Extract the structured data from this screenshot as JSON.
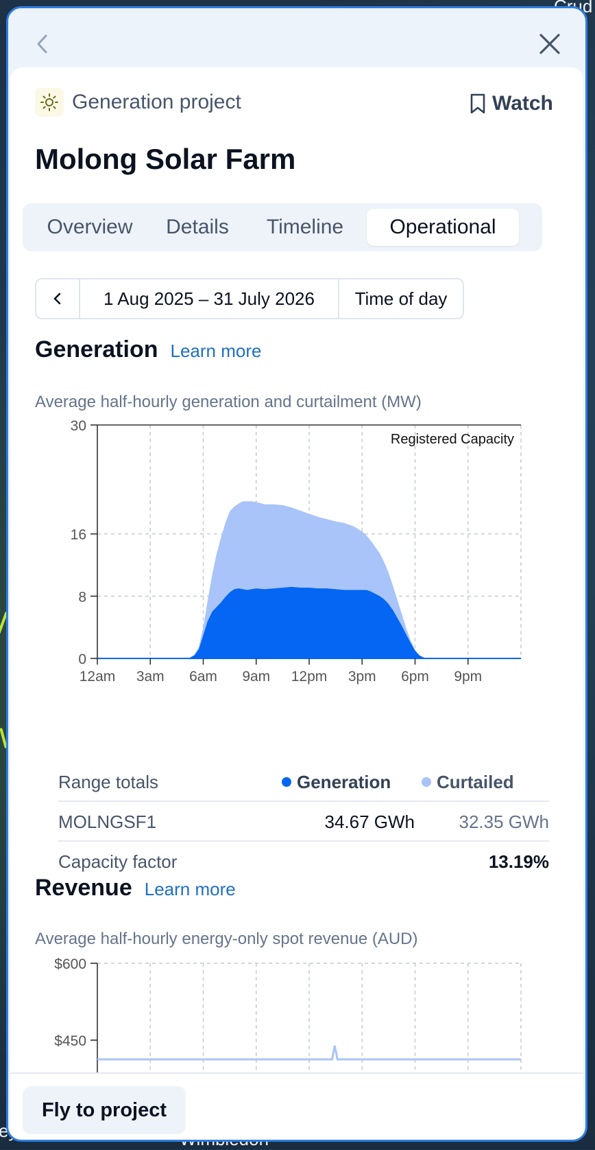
{
  "map": {
    "top_right_label": "Crud",
    "bottom_label": "Wimbledon",
    "left_label": "ey"
  },
  "panel": {
    "back_icon": "chevron-left-icon",
    "close_icon": "close-icon"
  },
  "header": {
    "project_type_icon": "sun-icon",
    "project_type": "Generation project",
    "watch_icon": "bookmark-icon",
    "watch_label": "Watch",
    "title": "Molong Solar Farm"
  },
  "tabs": [
    {
      "label": "Overview",
      "active": false
    },
    {
      "label": "Details",
      "active": false
    },
    {
      "label": "Timeline",
      "active": false
    },
    {
      "label": "Operational",
      "active": true
    }
  ],
  "date_range": {
    "prev_icon": "chevron-left-icon",
    "range": "1 Aug 2025 – 31 July 2026",
    "mode": "Time of day"
  },
  "generation": {
    "title": "Generation",
    "learn_more": "Learn more",
    "caption": "Average half-hourly generation and curtailment (MW)"
  },
  "totals": {
    "header": "Range totals",
    "generation_label": "Generation",
    "curtailed_label": "Curtailed",
    "rows": [
      {
        "label": "MOLNGSF1",
        "generation": "34.67 GWh",
        "curtailed": "32.35 GWh"
      }
    ],
    "capacity_factor_label": "Capacity factor",
    "capacity_factor": "13.19%"
  },
  "revenue": {
    "title": "Revenue",
    "learn_more": "Learn more",
    "caption": "Average half-hourly energy-only spot revenue (AUD)"
  },
  "footer": {
    "fly_label": "Fly to project"
  },
  "colors": {
    "generation": "#0466f2",
    "curtailed": "#a9c4f8",
    "link": "#1d6fc7",
    "panel_border": "#2f7de0"
  },
  "chart_data": [
    {
      "type": "area",
      "title": "Average half-hourly generation and curtailment (MW)",
      "annotation": "Registered Capacity",
      "x_unit": "hour of day",
      "xlim": [
        0,
        24
      ],
      "x_tick_labels": [
        "12am",
        "3am",
        "6am",
        "9am",
        "12pm",
        "3pm",
        "6pm",
        "9pm"
      ],
      "x_ticks": [
        0,
        3,
        6,
        9,
        12,
        15,
        18,
        21
      ],
      "ylim": [
        0,
        30
      ],
      "y_ticks": [
        0,
        8,
        16,
        30
      ],
      "grid": true,
      "stacked": true,
      "x": [
        0,
        5,
        5.25,
        5.5,
        5.75,
        6,
        6.25,
        6.5,
        6.75,
        7,
        7.25,
        7.5,
        7.75,
        8,
        8.25,
        8.5,
        8.75,
        9,
        9.5,
        10,
        10.5,
        11,
        11.5,
        12,
        12.5,
        13,
        13.5,
        14,
        14.5,
        15,
        15.25,
        15.5,
        15.75,
        16,
        16.25,
        16.5,
        16.75,
        17,
        17.25,
        17.5,
        17.75,
        18,
        18.25,
        18.5,
        19,
        24
      ],
      "series": [
        {
          "name": "Generation",
          "values": [
            0,
            0,
            0.1,
            0.4,
            1.2,
            3.0,
            4.8,
            6.0,
            6.6,
            7.2,
            7.9,
            8.5,
            8.9,
            9.0,
            8.9,
            8.8,
            8.9,
            9.0,
            8.9,
            9.0,
            9.1,
            9.2,
            9.1,
            9.1,
            9.0,
            9.0,
            8.9,
            8.8,
            8.8,
            8.8,
            8.8,
            8.6,
            8.3,
            8.0,
            7.6,
            7.0,
            6.2,
            5.2,
            4.2,
            3.1,
            2.0,
            1.0,
            0.4,
            0.1,
            0,
            0
          ]
        },
        {
          "name": "Curtailed",
          "values": [
            0,
            0,
            0,
            0.1,
            0.3,
            1.0,
            2.6,
            4.7,
            6.8,
            8.3,
            9.5,
            10.4,
            10.6,
            10.9,
            11.3,
            11.4,
            11.3,
            11.1,
            10.9,
            10.8,
            10.6,
            10.2,
            9.9,
            9.5,
            9.2,
            8.9,
            8.7,
            8.6,
            8.2,
            7.5,
            7.0,
            6.5,
            6.0,
            5.5,
            4.8,
            4.0,
            3.1,
            2.3,
            1.5,
            0.8,
            0.3,
            0.1,
            0,
            0,
            0,
            0
          ]
        }
      ]
    },
    {
      "type": "area",
      "title": "Average half-hourly energy-only spot revenue (AUD)",
      "y_tick_labels": [
        "$600",
        "$450"
      ],
      "y_ticks": [
        600,
        450
      ],
      "xlim": [
        0,
        24
      ],
      "grid": true,
      "x": [
        0,
        13.3,
        13.45,
        13.6,
        24
      ],
      "series": [
        {
          "values": [
            0,
            0,
            20,
            0,
            0
          ]
        }
      ]
    }
  ]
}
